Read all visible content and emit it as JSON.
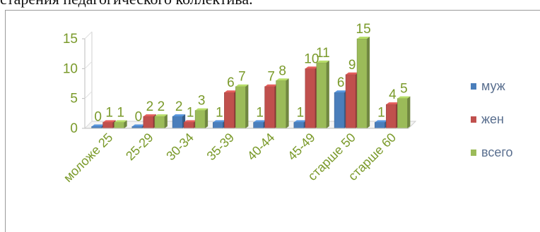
{
  "caption": "старения педагогического коллектива.",
  "chart_data": {
    "type": "bar",
    "title": "",
    "xlabel": "",
    "ylabel": "",
    "ylim": [
      0,
      15
    ],
    "yticks": [
      0,
      5,
      10,
      15
    ],
    "categories": [
      "моложе 25",
      "25-29",
      "30-34",
      "35-39",
      "40-44",
      "45-49",
      "старше 50",
      "старше 60"
    ],
    "series": [
      {
        "name": "муж",
        "color": "#4a7ebb",
        "values": [
          0,
          0,
          2,
          1,
          1,
          1,
          6,
          1
        ]
      },
      {
        "name": "жен",
        "color": "#c0504d",
        "values": [
          1,
          2,
          1,
          6,
          7,
          10,
          9,
          4
        ]
      },
      {
        "name": "всего",
        "color": "#9bbb59",
        "values": [
          1,
          2,
          3,
          7,
          8,
          11,
          15,
          5
        ]
      }
    ],
    "legend": "right",
    "grid": false,
    "data_labels": true
  }
}
